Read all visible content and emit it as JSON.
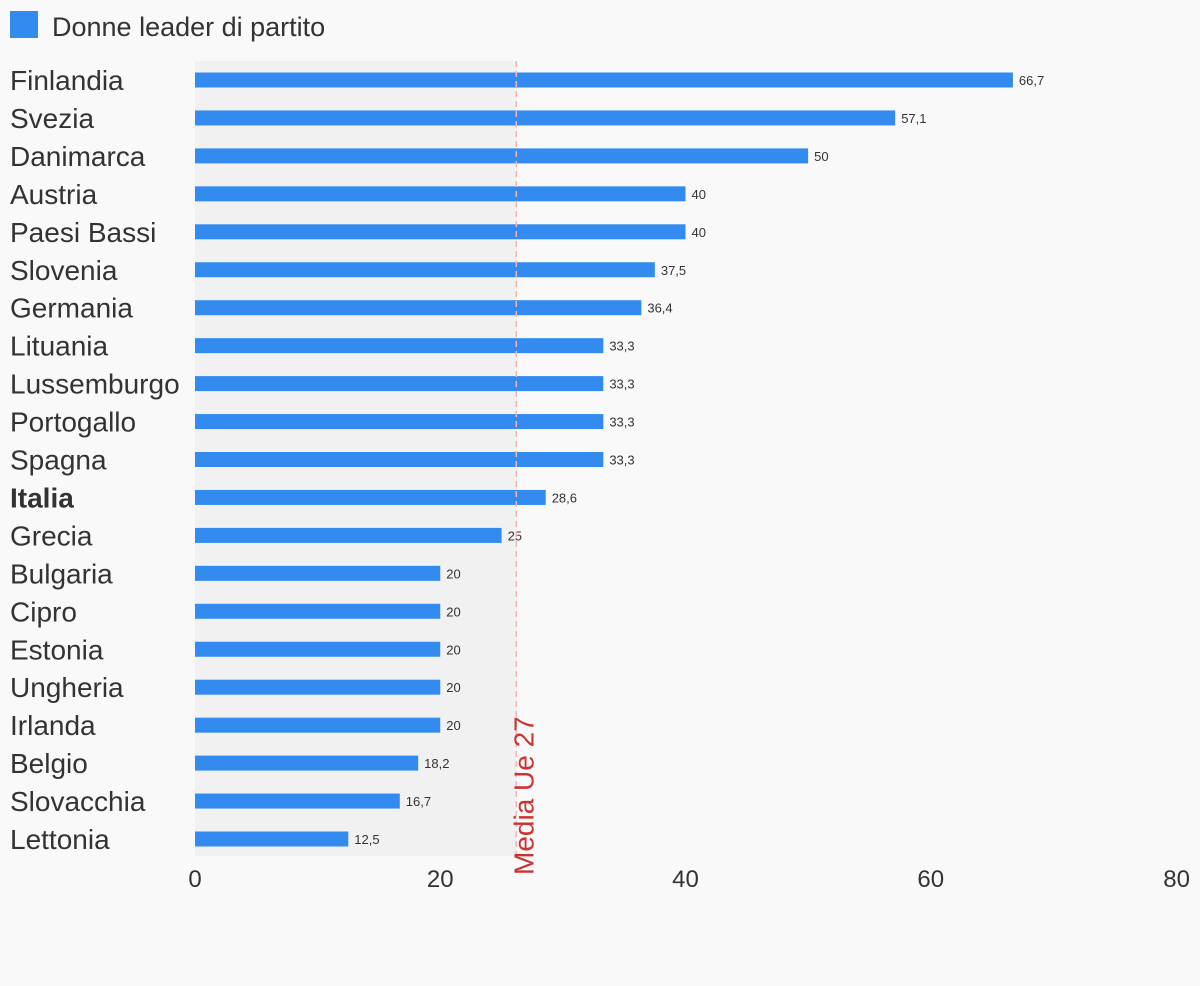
{
  "chart_data": {
    "type": "bar",
    "orientation": "horizontal",
    "legend": {
      "label": "Donne leader di partito",
      "placement": "top-left"
    },
    "series": [
      {
        "name": "Donne leader di partito",
        "color": "#338bf0",
        "values": [
          66.7,
          57.1,
          50,
          40,
          40,
          37.5,
          36.4,
          33.3,
          33.3,
          33.3,
          33.3,
          28.6,
          25,
          20,
          20,
          20,
          20,
          20,
          18.2,
          16.7,
          12.5
        ]
      }
    ],
    "categories": [
      "Finlandia",
      "Svezia",
      "Danimarca",
      "Austria",
      "Paesi Bassi",
      "Slovenia",
      "Germania",
      "Lituania",
      "Lussemburgo",
      "Portogallo",
      "Spagna",
      "Italia",
      "Grecia",
      "Bulgaria",
      "Cipro",
      "Estonia",
      "Ungheria",
      "Irlanda",
      "Belgio",
      "Slovacchia",
      "Lettonia"
    ],
    "highlighted_category": "Italia",
    "value_labels": [
      "66,7",
      "57,1",
      "50",
      "40",
      "40",
      "37,5",
      "36,4",
      "33,3",
      "33,3",
      "33,3",
      "33,3",
      "28,6",
      "25",
      "20",
      "20",
      "20",
      "20",
      "20",
      "18,2",
      "16,7",
      "12,5"
    ],
    "xlim": [
      0,
      80
    ],
    "x_ticks": [
      0,
      20,
      40,
      60,
      80
    ],
    "grid": false,
    "reference_line": {
      "label": "Media Ue 27",
      "value": 26.2,
      "color": "#cc3333",
      "shaded_band_color": "#f1f1f1"
    }
  }
}
